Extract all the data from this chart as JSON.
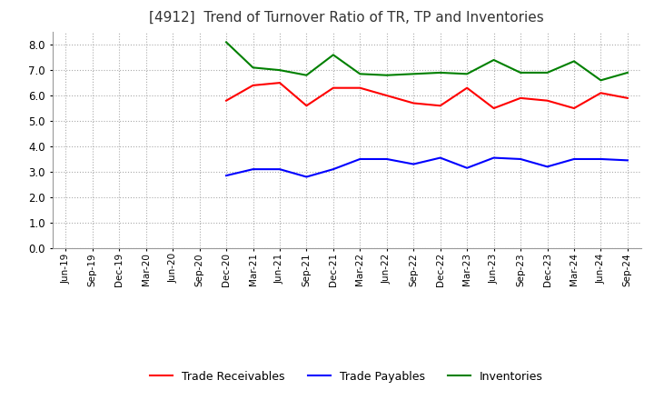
{
  "title": "[4912]  Trend of Turnover Ratio of TR, TP and Inventories",
  "title_fontsize": 11,
  "ylim": [
    0.0,
    8.5
  ],
  "yticks": [
    0.0,
    1.0,
    2.0,
    3.0,
    4.0,
    5.0,
    6.0,
    7.0,
    8.0
  ],
  "background_color": "#ffffff",
  "grid_color": "#aaaaaa",
  "x_labels": [
    "Jun-19",
    "Sep-19",
    "Dec-19",
    "Mar-20",
    "Jun-20",
    "Sep-20",
    "Dec-20",
    "Mar-21",
    "Jun-21",
    "Sep-21",
    "Dec-21",
    "Mar-22",
    "Jun-22",
    "Sep-22",
    "Dec-22",
    "Mar-23",
    "Jun-23",
    "Sep-23",
    "Dec-23",
    "Mar-24",
    "Jun-24",
    "Sep-24"
  ],
  "trade_receivables": {
    "color": "#ff0000",
    "label": "Trade Receivables",
    "values": [
      null,
      null,
      null,
      null,
      null,
      null,
      5.8,
      6.4,
      6.5,
      5.6,
      6.3,
      6.3,
      6.0,
      5.7,
      5.6,
      6.3,
      5.5,
      5.9,
      5.8,
      5.5,
      6.1,
      5.9
    ]
  },
  "trade_payables": {
    "color": "#0000ff",
    "label": "Trade Payables",
    "values": [
      null,
      null,
      null,
      null,
      null,
      null,
      2.85,
      3.1,
      3.1,
      2.8,
      3.1,
      3.5,
      3.5,
      3.3,
      3.55,
      3.15,
      3.55,
      3.5,
      3.2,
      3.5,
      3.5,
      3.45
    ]
  },
  "inventories": {
    "color": "#008000",
    "label": "Inventories",
    "values": [
      null,
      null,
      null,
      null,
      null,
      null,
      8.1,
      7.1,
      7.0,
      6.8,
      7.6,
      6.85,
      6.8,
      6.85,
      6.9,
      6.85,
      7.4,
      6.9,
      6.9,
      7.35,
      6.6,
      6.9
    ]
  }
}
